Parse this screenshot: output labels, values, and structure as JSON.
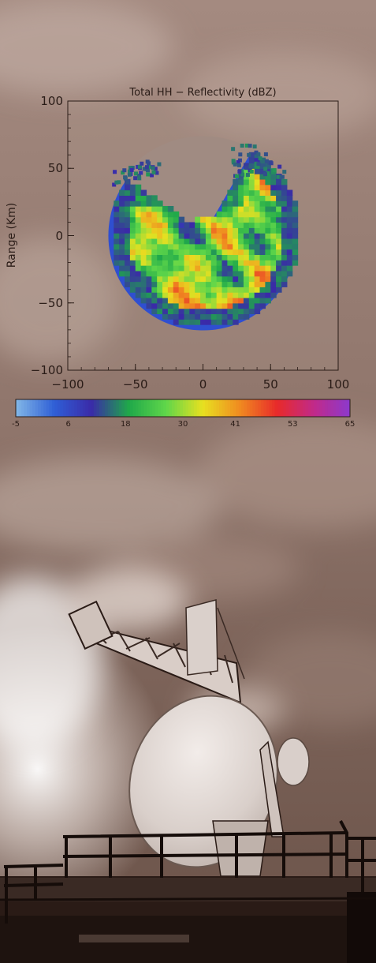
{
  "chart_data": {
    "type": "heatmap",
    "title": "Total HH − Reflectivity (dBZ)",
    "ylabel": "Range (Km)",
    "xlabel": "",
    "xlim": [
      -100,
      100
    ],
    "ylim": [
      -100,
      100
    ],
    "x_ticks": [
      "−100",
      "−50",
      "0",
      "50",
      "100"
    ],
    "y_ticks": [
      "100",
      "50",
      "0",
      "−50",
      "−100"
    ],
    "colorbar": {
      "ticks": [
        "-5",
        "6",
        "18",
        "30",
        "41",
        "53",
        "65"
      ],
      "range": [
        -5,
        65
      ],
      "colors": [
        "#7fb4e6",
        "#2f5fd6",
        "#3a2aa8",
        "#1fa84a",
        "#5fd64a",
        "#e8e020",
        "#f08a20",
        "#e82a2a",
        "#c02a8a",
        "#8a3ad0"
      ]
    },
    "coverage": {
      "center_km": [
        0,
        0
      ],
      "radius_km": 70,
      "wedge_from_deg": 60,
      "wedge_to_deg": 145
    },
    "grid": false
  },
  "colors": {
    "sky": "#8c6f63",
    "cloud": "#f1e6df",
    "structure": "#1a0f0c"
  }
}
